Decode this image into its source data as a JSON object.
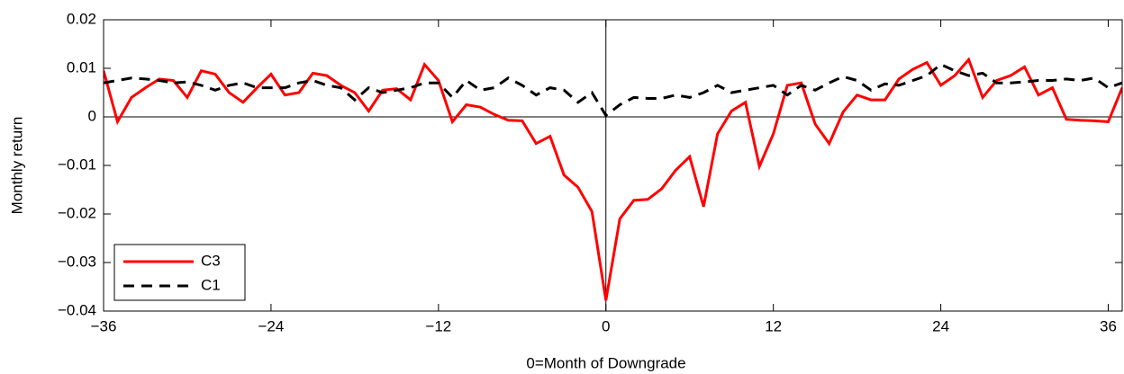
{
  "chart_data": {
    "type": "line",
    "x": [
      -36,
      -35,
      -34,
      -33,
      -32,
      -31,
      -30,
      -29,
      -28,
      -27,
      -26,
      -25,
      -24,
      -23,
      -22,
      -21,
      -20,
      -19,
      -18,
      -17,
      -16,
      -15,
      -14,
      -13,
      -12,
      -11,
      -10,
      -9,
      -8,
      -7,
      -6,
      -5,
      -4,
      -3,
      -2,
      -1,
      0,
      1,
      2,
      3,
      4,
      5,
      6,
      7,
      8,
      9,
      10,
      11,
      12,
      13,
      14,
      15,
      16,
      17,
      18,
      19,
      20,
      21,
      22,
      23,
      24,
      25,
      26,
      27,
      28,
      29,
      30,
      31,
      32,
      33,
      34,
      35,
      36,
      37
    ],
    "series": [
      {
        "name": "C3",
        "color": "#ff0000",
        "dash": false,
        "values": [
          0.0095,
          -0.001,
          0.004,
          0.006,
          0.0078,
          0.0075,
          0.004,
          0.0095,
          0.0088,
          0.005,
          0.003,
          0.006,
          0.0088,
          0.0045,
          0.005,
          0.009,
          0.0085,
          0.0065,
          0.005,
          0.0012,
          0.0055,
          0.0058,
          0.0035,
          0.0108,
          0.0075,
          -0.001,
          0.0025,
          0.002,
          0.0005,
          -0.0007,
          -0.0008,
          -0.0055,
          -0.004,
          -0.012,
          -0.0145,
          -0.0195,
          -0.0378,
          -0.021,
          -0.0172,
          -0.017,
          -0.0148,
          -0.011,
          -0.0082,
          -0.0185,
          -0.0035,
          0.0012,
          0.003,
          -0.0102,
          -0.0035,
          0.0065,
          0.007,
          -0.0015,
          -0.0055,
          0.001,
          0.0045,
          0.0035,
          0.0035,
          0.0078,
          0.0098,
          0.0112,
          0.0065,
          0.0085,
          0.0118,
          0.004,
          0.0075,
          0.0085,
          0.0103,
          0.0045,
          0.006,
          -0.0005,
          -0.0007,
          -0.0008,
          -0.001,
          0.006
        ]
      },
      {
        "name": "C1",
        "color": "#000000",
        "dash": true,
        "values": [
          0.007,
          0.0075,
          0.008,
          0.0078,
          0.0075,
          0.007,
          0.0072,
          0.0065,
          0.0055,
          0.0065,
          0.007,
          0.006,
          0.006,
          0.006,
          0.007,
          0.0075,
          0.0065,
          0.006,
          0.0035,
          0.006,
          0.005,
          0.0055,
          0.006,
          0.007,
          0.007,
          0.004,
          0.0075,
          0.0055,
          0.006,
          0.008,
          0.0065,
          0.0045,
          0.006,
          0.0055,
          0.003,
          0.005,
          0.0003,
          0.0025,
          0.004,
          0.0038,
          0.0038,
          0.0045,
          0.004,
          0.005,
          0.0065,
          0.005,
          0.0055,
          0.006,
          0.0065,
          0.0045,
          0.0065,
          0.0055,
          0.007,
          0.0083,
          0.0075,
          0.0055,
          0.0068,
          0.0065,
          0.0075,
          0.0085,
          0.0108,
          0.0095,
          0.0085,
          0.009,
          0.007,
          0.007,
          0.0072,
          0.0075,
          0.0075,
          0.0078,
          0.0075,
          0.008,
          0.006,
          0.007
        ]
      }
    ],
    "xlim": [
      -36,
      37
    ],
    "ylim": [
      -0.04,
      0.02
    ],
    "xticks": [
      {
        "value": -36,
        "label": "−36"
      },
      {
        "value": -24,
        "label": "−24"
      },
      {
        "value": -12,
        "label": "−12"
      },
      0,
      12,
      24,
      36
    ],
    "yticks": [
      {
        "value": -0.04,
        "label": "−0.04"
      },
      {
        "value": -0.03,
        "label": "−0.03"
      },
      {
        "value": -0.02,
        "label": "−0.02"
      },
      {
        "value": -0.01,
        "label": "−0.01"
      },
      0,
      0.01,
      0.02
    ],
    "xlabel": "0=Month of Downgrade",
    "ylabel": "Monthly return",
    "legend": "lower-left"
  }
}
